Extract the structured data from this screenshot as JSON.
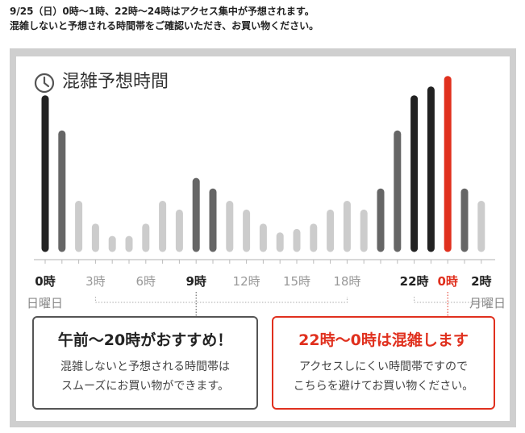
{
  "notice": {
    "line1": "9/25（日）0時～1時、22時～24時はアクセス集中が予想されます。",
    "line2": "混雑しないと予想される時間帯をご確認いただき、お買い物ください。"
  },
  "panel": {
    "title": "混雑予想時間",
    "icon": "clock-icon",
    "day_labels": {
      "left": "日曜日",
      "right": "月曜日"
    }
  },
  "colors": {
    "peak": "#222222",
    "high": "#666666",
    "low": "#cccccc",
    "highlight": "#e0301e",
    "frame": "#cfcfcf"
  },
  "chart_data": {
    "type": "bar",
    "title": "混雑予想時間",
    "x_hours": [
      0,
      1,
      2,
      3,
      4,
      5,
      6,
      7,
      8,
      9,
      10,
      11,
      12,
      13,
      14,
      15,
      16,
      17,
      18,
      19,
      20,
      21,
      22,
      23,
      0,
      1,
      2
    ],
    "values": [
      85,
      65,
      25,
      12,
      5,
      5,
      12,
      25,
      20,
      38,
      32,
      25,
      20,
      12,
      7,
      9,
      12,
      20,
      25,
      20,
      32,
      65,
      85,
      90,
      96,
      32,
      25
    ],
    "levels": [
      "peak",
      "high",
      "low",
      "low",
      "low",
      "low",
      "low",
      "low",
      "low",
      "high",
      "high",
      "low",
      "low",
      "low",
      "low",
      "low",
      "low",
      "low",
      "low",
      "low",
      "high",
      "high",
      "peak",
      "peak",
      "highlight",
      "high",
      "low"
    ],
    "ylim": [
      0,
      100
    ],
    "tick_labels": [
      {
        "text": "0時",
        "at": 0,
        "style": "bold"
      },
      {
        "text": "3時",
        "at": 3,
        "style": "normal"
      },
      {
        "text": "6時",
        "at": 6,
        "style": "normal"
      },
      {
        "text": "9時",
        "at": 9,
        "style": "bold"
      },
      {
        "text": "12時",
        "at": 12,
        "style": "normal"
      },
      {
        "text": "15時",
        "at": 15,
        "style": "normal"
      },
      {
        "text": "18時",
        "at": 18,
        "style": "normal"
      },
      {
        "text": "22時",
        "at": 22,
        "style": "bold"
      },
      {
        "text": "0時",
        "at": 24,
        "style": "red"
      },
      {
        "text": "2時",
        "at": 26,
        "style": "bold"
      }
    ],
    "grid": false
  },
  "boxes": {
    "recommend": {
      "title": "午前～20時がおすすめ！",
      "line1": "混雑しないと予想される時間帯は",
      "line2": "スムーズにお買い物ができます。"
    },
    "crowded": {
      "title": "22時～0時は混雑します",
      "line1": "アクセスしにくい時間帯ですので",
      "line2": "こちらを避けてお買い物ください。"
    }
  }
}
